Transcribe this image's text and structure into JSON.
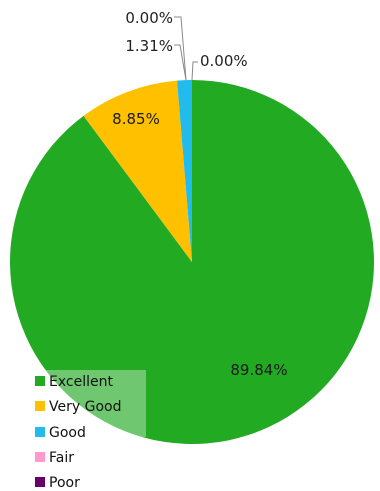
{
  "chart_data": {
    "type": "pie",
    "title": "",
    "categories": [
      "Excellent",
      "Very Good",
      "Good",
      "Fair",
      "Poor"
    ],
    "values": [
      89.84,
      8.85,
      1.31,
      0.0,
      0.0
    ],
    "labels": [
      "89.84%",
      "8.85%",
      "1.31%",
      "0.00%",
      "0.00%"
    ],
    "colors": [
      "#22aa22",
      "#ffc000",
      "#22bbee",
      "#ff99cc",
      "#660066"
    ],
    "legend_position": "bottom-left",
    "start_angle": "top",
    "direction": "clockwise"
  }
}
